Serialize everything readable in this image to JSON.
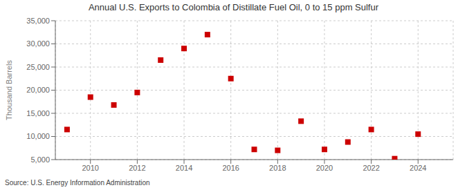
{
  "chart_data": {
    "type": "scatter",
    "title": "Annual U.S. Exports to Colombia of Distillate Fuel Oil, 0 to 15 ppm Sulfur",
    "ylabel": "Thousand Barrels",
    "source": "Source: U.S. Energy Information Administration",
    "x": [
      2009,
      2010,
      2011,
      2012,
      2013,
      2014,
      2015,
      2016,
      2017,
      2018,
      2019,
      2020,
      2021,
      2022,
      2023,
      2024
    ],
    "values": [
      11500,
      18500,
      16800,
      19500,
      26500,
      29000,
      32000,
      22500,
      7200,
      7000,
      13300,
      7200,
      8800,
      11500,
      5200,
      10500
    ],
    "color": "#cc0000",
    "marker": "square",
    "xlim": [
      2008.5,
      2025.5
    ],
    "ylim": [
      5000,
      35000
    ],
    "xticks": [
      2010,
      2012,
      2014,
      2016,
      2018,
      2020,
      2022,
      2024
    ],
    "yticks": [
      {
        "value": 5000,
        "label": "5,000"
      },
      {
        "value": 10000,
        "label": "10,000"
      },
      {
        "value": 15000,
        "label": "15,000"
      },
      {
        "value": 20000,
        "label": "20,000"
      },
      {
        "value": 25000,
        "label": "25,000"
      },
      {
        "value": 30000,
        "label": "30,000"
      },
      {
        "value": 35000,
        "label": "35,000"
      }
    ],
    "grid": true
  }
}
